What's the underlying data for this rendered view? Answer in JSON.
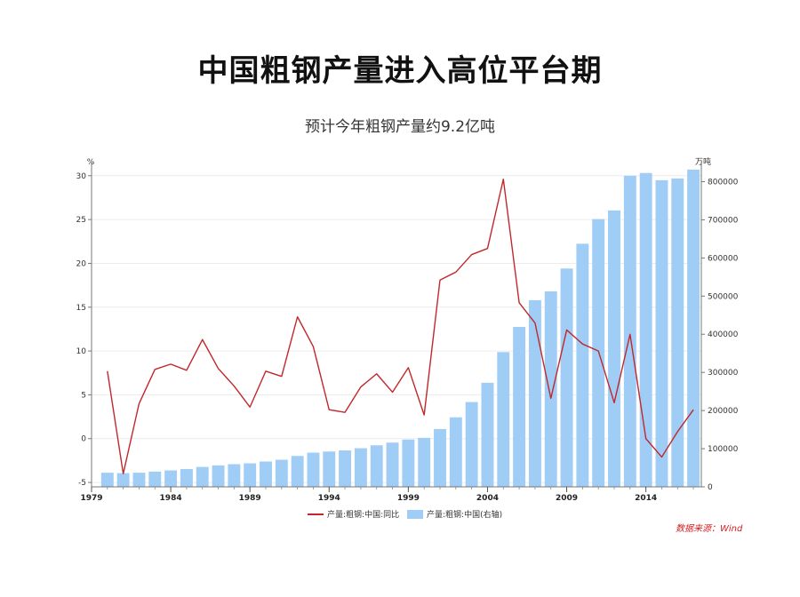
{
  "title": "中国粗钢产量进入高位平台期",
  "subtitle": "预计今年粗钢产量约9.2亿吨",
  "source": "数据来源：Wind",
  "chart_data": {
    "type": "bar+line",
    "title": "中国粗钢产量进入高位平台期",
    "subtitle": "预计今年粗钢产量约9.2亿吨",
    "left_axis_unit": "%",
    "right_axis_unit": "万吨",
    "x_tick_labels": [
      "1979",
      "1984",
      "1989",
      "1994",
      "1999",
      "2004",
      "2009",
      "2014"
    ],
    "left_ticks": [
      "30",
      "25",
      "20",
      "15",
      "10",
      "5",
      "0",
      "-5"
    ],
    "right_ticks": [
      "800000",
      "700000",
      "600000",
      "500000",
      "400000",
      "300000",
      "200000",
      "100000",
      "0"
    ],
    "left_ylim": [
      -5.5,
      31.5
    ],
    "right_ylim": [
      0,
      850000
    ],
    "x_range": [
      1979,
      2017.5
    ],
    "x": [
      1980,
      1981,
      1982,
      1983,
      1984,
      1985,
      1986,
      1987,
      1988,
      1989,
      1990,
      1991,
      1992,
      1993,
      1994,
      1995,
      1996,
      1997,
      1998,
      1999,
      2000,
      2001,
      2002,
      2003,
      2004,
      2005,
      2006,
      2007,
      2008,
      2009,
      2010,
      2011,
      2012,
      2013,
      2014,
      2015,
      2016,
      2017
    ],
    "series": [
      {
        "name": "产量:粗钢:中国(右轴)",
        "type": "bar",
        "axis": "right",
        "color": "#9fcdf5",
        "values": [
          37000,
          36000,
          37000,
          40000,
          43000,
          46700,
          52200,
          56300,
          59400,
          61600,
          66400,
          71000,
          80900,
          89600,
          92600,
          95400,
          101200,
          108900,
          116000,
          124000,
          128500,
          151600,
          182200,
          222300,
          272800,
          353200,
          419100,
          489300,
          512300,
          572200,
          637200,
          701900,
          724500,
          815400,
          822700,
          803800,
          808400,
          831700
        ]
      },
      {
        "name": "产量:粗钢:中国:同比",
        "type": "line",
        "axis": "left",
        "color": "#c0282c",
        "values": [
          7.7,
          -4,
          4,
          7.9,
          8.5,
          7.8,
          11.3,
          8,
          6,
          3.6,
          7.7,
          7.1,
          13.9,
          10.5,
          3.3,
          3,
          5.9,
          7.4,
          5.3,
          8.1,
          2.7,
          18.1,
          19,
          21,
          21.7,
          29.6,
          15.5,
          13.2,
          4.6,
          12.4,
          10.8,
          10,
          4.1,
          11.9,
          0,
          -2.1,
          0.8,
          3.3
        ]
      }
    ],
    "legend": [
      {
        "label": "产量:粗钢:中国:同比",
        "color": "#c0282c",
        "shape": "line"
      },
      {
        "label": "产量:粗钢:中国(右轴)",
        "color": "#9fcdf5",
        "shape": "box"
      }
    ],
    "legend_position": "bottom-center",
    "grid": true
  }
}
